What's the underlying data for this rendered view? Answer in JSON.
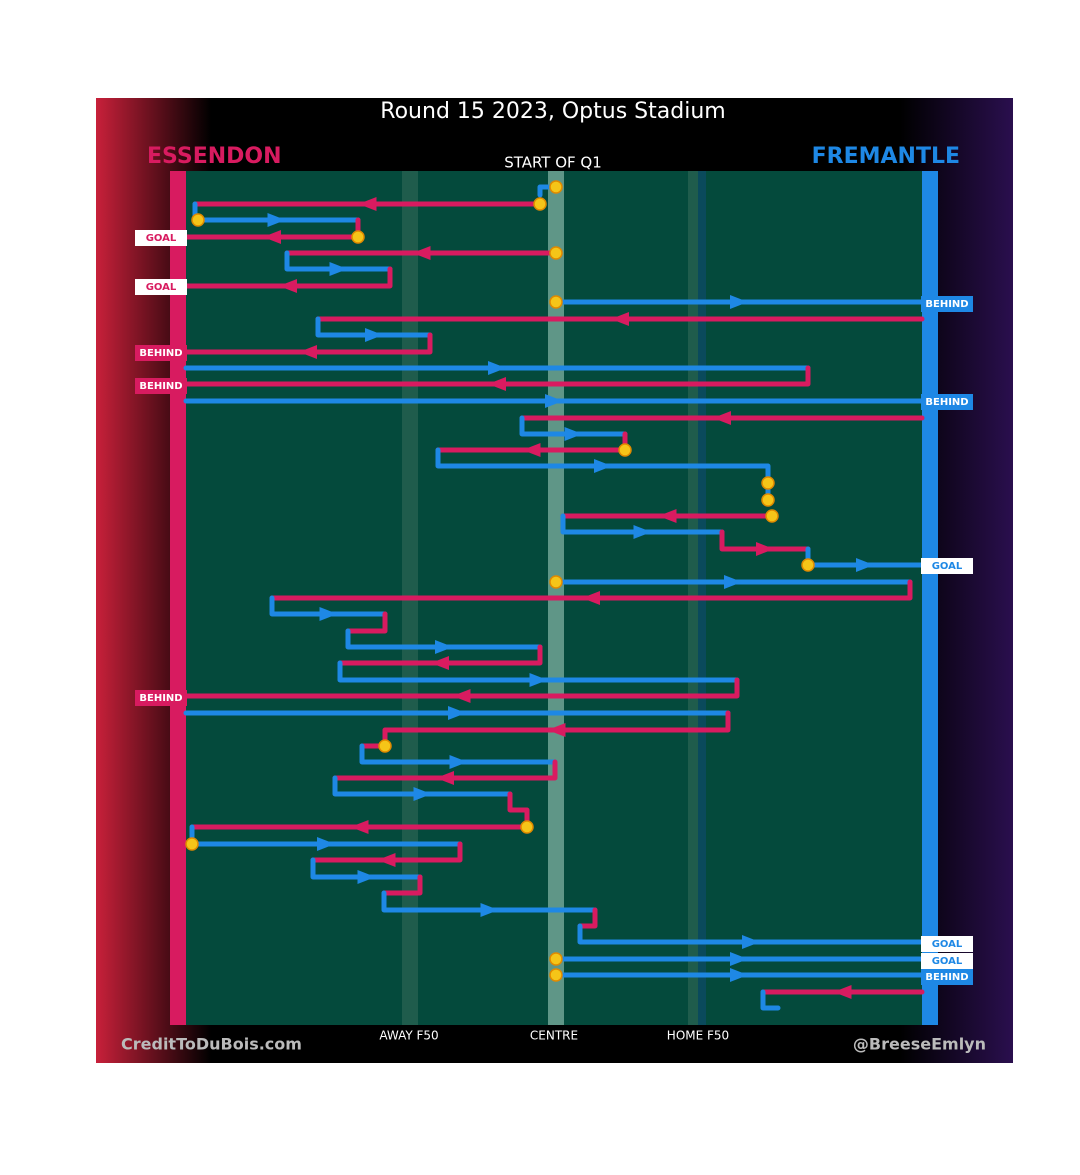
{
  "header": {
    "title": "Round 15 2023, Optus Stadium",
    "home_team": "ESSENDON",
    "away_team": "FREMANTLE",
    "period": "START OF Q1"
  },
  "zones": [
    "AWAY F50",
    "CENTRE",
    "HOME F50"
  ],
  "left_outcomes": [
    "GOAL",
    "GOAL",
    "BEHIND",
    "BEHIND",
    "BEHIND"
  ],
  "right_outcomes": [
    "BEHIND",
    "BEHIND",
    "GOAL",
    "GOAL",
    "GOAL",
    "BEHIND"
  ],
  "footer": {
    "left": "CreditToDuBois.com",
    "right": "@BreeseEmlyn"
  }
}
